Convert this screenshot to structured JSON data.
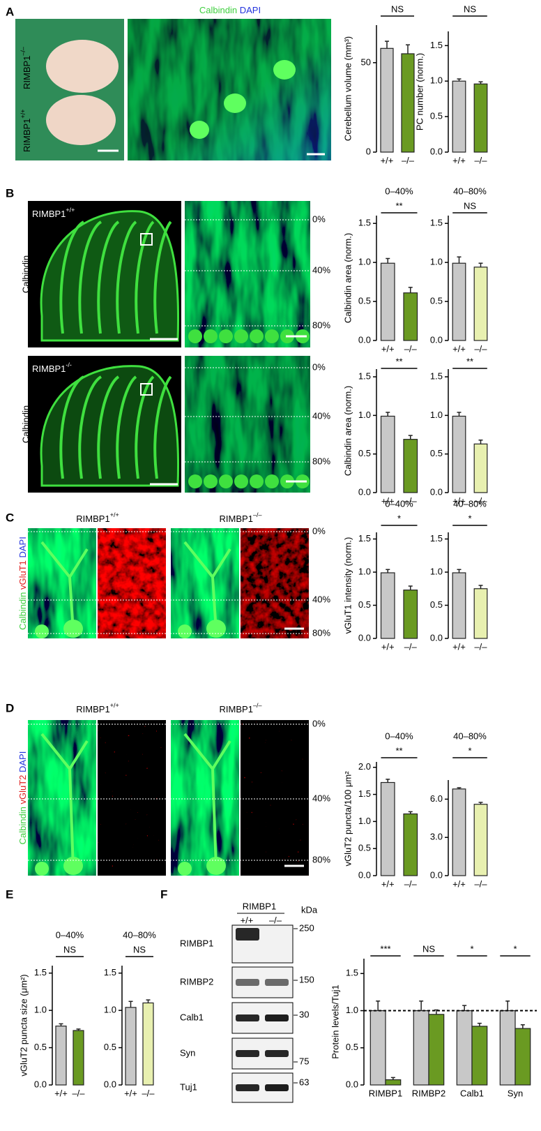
{
  "figure": {
    "panels": [
      "A",
      "B",
      "C",
      "D",
      "E",
      "F"
    ],
    "a_title": [
      "Calbindin",
      "DAPI"
    ],
    "a_labels": [
      {
        "base": "RIMBP1",
        "sup": "–/–"
      },
      {
        "base": "RIMBP1",
        "sup": "+/+"
      }
    ],
    "b_labels": [
      {
        "base": "RIMBP1",
        "sup": "+/+"
      },
      {
        "base": "RIMBP1",
        "sup": "-/-"
      }
    ],
    "b_stain": "Calbindin",
    "depth_labels": [
      "0%",
      "40%",
      "80%"
    ],
    "cd_headers": [
      {
        "base": "RIMBP1",
        "sup": "+/+"
      },
      {
        "base": "RIMBP1",
        "sup": "–/–"
      }
    ],
    "c_stain": [
      "Calbindin",
      "vGluT1",
      "DAPI"
    ],
    "d_stain": [
      "Calbindin",
      "vGluT2",
      "DAPI"
    ],
    "blot": {
      "header": "RIMBP1",
      "genotypes": [
        "+/+",
        "–/–"
      ],
      "unit": "kDa",
      "rows": [
        {
          "label": "RIMBP1",
          "kda": "250"
        },
        {
          "label": "RIMBP2",
          "kda": "150"
        },
        {
          "label": "Calb1",
          "kda": "30"
        },
        {
          "label": "Syn",
          "kda": "75"
        },
        {
          "label": "Tuj1",
          "kda": "63"
        }
      ]
    }
  },
  "chart_data": [
    {
      "type": "bar",
      "ylabel": "Cerebellum volume (mm³)",
      "categories": [
        "+/+",
        "–/–"
      ],
      "values": [
        58,
        55
      ],
      "errors": [
        4,
        5
      ],
      "colors": [
        "#c8c8c8",
        "#6a9a22"
      ],
      "significance": "NS",
      "ylim": [
        0,
        71
      ],
      "yticks": [
        0,
        50
      ]
    },
    {
      "type": "bar",
      "ylabel": "PC number (norm.)",
      "categories": [
        "+/+",
        "–/–"
      ],
      "values": [
        1.0,
        0.96
      ],
      "errors": [
        0.03,
        0.03
      ],
      "colors": [
        "#c8c8c8",
        "#6a9a22"
      ],
      "significance": "NS",
      "ylim": [
        0,
        1.7
      ],
      "yticks": [
        {
          "value": 0,
          "label": "0.0"
        },
        {
          "value": 0.5,
          "label": "0.5"
        },
        {
          "value": 1,
          "label": "1.0"
        },
        {
          "value": 1.5,
          "label": "1.5"
        }
      ]
    },
    {
      "type": "bar",
      "title": "0–40%",
      "ylabel": "Calbindin area (norm.)",
      "categories": [
        "+/+",
        "–/–"
      ],
      "values": [
        0.99,
        0.61
      ],
      "errors": [
        0.06,
        0.07
      ],
      "colors": [
        "#c8c8c8",
        "#6a9a22"
      ],
      "significance": "**",
      "ylim": [
        0,
        1.6
      ],
      "yticks": [
        {
          "value": 0,
          "label": "0.0"
        },
        {
          "value": 0.5,
          "label": "0.5"
        },
        {
          "value": 1,
          "label": "1.0"
        },
        {
          "value": 1.5,
          "label": "1.5"
        }
      ]
    },
    {
      "type": "bar",
      "title": "40–80%",
      "categories": [
        "+/+",
        "–/–"
      ],
      "values": [
        0.99,
        0.94
      ],
      "errors": [
        0.08,
        0.05
      ],
      "colors": [
        "#c8c8c8",
        "#e8f0b0"
      ],
      "significance": "NS",
      "ylim": [
        0,
        1.6
      ],
      "yticks": [
        {
          "value": 0,
          "label": "0.0"
        },
        {
          "value": 0.5,
          "label": "0.5"
        },
        {
          "value": 1,
          "label": "1.0"
        },
        {
          "value": 1.5,
          "label": "1.5"
        }
      ]
    },
    {
      "type": "bar",
      "ylabel": "Calbindin area (norm.)",
      "categories": [
        "+/+",
        "–/–"
      ],
      "values": [
        0.99,
        0.69
      ],
      "errors": [
        0.05,
        0.05
      ],
      "colors": [
        "#c8c8c8",
        "#6a9a22"
      ],
      "significance": "**",
      "ylim": [
        0,
        1.6
      ],
      "yticks": [
        {
          "value": 0,
          "label": "0.0"
        },
        {
          "value": 0.5,
          "label": "0.5"
        },
        {
          "value": 1,
          "label": "1.0"
        },
        {
          "value": 1.5,
          "label": "1.5"
        }
      ]
    },
    {
      "type": "bar",
      "categories": [
        "+/+",
        "–/–"
      ],
      "values": [
        0.99,
        0.63
      ],
      "errors": [
        0.05,
        0.05
      ],
      "colors": [
        "#c8c8c8",
        "#e8f0b0"
      ],
      "significance": "**",
      "ylim": [
        0,
        1.6
      ],
      "yticks": [
        {
          "value": 0,
          "label": "0.0"
        },
        {
          "value": 0.5,
          "label": "0.5"
        },
        {
          "value": 1,
          "label": "1.0"
        },
        {
          "value": 1.5,
          "label": "1.5"
        }
      ]
    },
    {
      "type": "bar",
      "title": "0–40%",
      "ylabel": "vGluT1 intensity (norm.)",
      "categories": [
        "+/+",
        "–/–"
      ],
      "values": [
        0.99,
        0.73
      ],
      "errors": [
        0.05,
        0.06
      ],
      "colors": [
        "#c8c8c8",
        "#6a9a22"
      ],
      "significance": "*",
      "ylim": [
        0,
        1.6
      ],
      "yticks": [
        {
          "value": 0,
          "label": "0.0"
        },
        {
          "value": 0.5,
          "label": "0.5"
        },
        {
          "value": 1,
          "label": "1.0"
        },
        {
          "value": 1.5,
          "label": "1.5"
        }
      ]
    },
    {
      "type": "bar",
      "title": "40–80%",
      "categories": [
        "+/+",
        "–/–"
      ],
      "values": [
        0.99,
        0.75
      ],
      "errors": [
        0.05,
        0.05
      ],
      "colors": [
        "#c8c8c8",
        "#e8f0b0"
      ],
      "significance": "*",
      "ylim": [
        0,
        1.6
      ],
      "yticks": [
        {
          "value": 0,
          "label": "0.0"
        },
        {
          "value": 0.5,
          "label": "0.5"
        },
        {
          "value": 1,
          "label": "1.0"
        },
        {
          "value": 1.5,
          "label": "1.5"
        }
      ]
    },
    {
      "type": "bar",
      "title": "0–40%",
      "ylabel": "vGluT2 puncta/100 μm²",
      "categories": [
        "+/+",
        "–/–"
      ],
      "values": [
        1.72,
        1.14
      ],
      "errors": [
        0.06,
        0.04
      ],
      "colors": [
        "#c8c8c8",
        "#6a9a22"
      ],
      "significance": "**",
      "ylim": [
        0,
        2.1
      ],
      "yticks": [
        {
          "value": 0,
          "label": "0.0"
        },
        {
          "value": 0.5,
          "label": "0.5"
        },
        {
          "value": 1,
          "label": "1.0"
        },
        {
          "value": 1.5,
          "label": "1.5"
        },
        {
          "value": 2,
          "label": "2.0"
        }
      ]
    },
    {
      "type": "bar",
      "title": "40–80%",
      "categories": [
        "+/+",
        "–/–"
      ],
      "values": [
        6.8,
        5.6
      ],
      "errors": [
        0.1,
        0.15
      ],
      "colors": [
        "#c8c8c8",
        "#e8f0b0"
      ],
      "significance": "*",
      "ylim": [
        0,
        7.5
      ],
      "yticks": [
        {
          "value": 0,
          "label": "0.0"
        },
        {
          "value": 3,
          "label": "3.0"
        },
        {
          "value": 6,
          "label": "6.0"
        }
      ]
    },
    {
      "type": "bar",
      "title": "0–40%",
      "ylabel": "vGluT2 puncta size (μm²)",
      "categories": [
        "+/+",
        "–/–"
      ],
      "values": [
        0.79,
        0.73
      ],
      "errors": [
        0.03,
        0.02
      ],
      "colors": [
        "#c8c8c8",
        "#6a9a22"
      ],
      "significance": "NS",
      "ylim": [
        0,
        1.6
      ],
      "yticks": [
        {
          "value": 0,
          "label": "0.0"
        },
        {
          "value": 0.5,
          "label": "0.5"
        },
        {
          "value": 1,
          "label": "1.0"
        },
        {
          "value": 1.5,
          "label": "1.5"
        }
      ]
    },
    {
      "type": "bar",
      "title": "40–80%",
      "categories": [
        "+/+",
        "–/–"
      ],
      "values": [
        1.04,
        1.1
      ],
      "errors": [
        0.08,
        0.04
      ],
      "colors": [
        "#c8c8c8",
        "#e8f0b0"
      ],
      "significance": "NS",
      "ylim": [
        0,
        1.6
      ],
      "yticks": [
        {
          "value": 0,
          "label": "0.0"
        },
        {
          "value": 0.5,
          "label": "0.5"
        },
        {
          "value": 1,
          "label": "1.0"
        },
        {
          "value": 1.5,
          "label": "1.5"
        }
      ]
    },
    {
      "type": "bar",
      "ylabel": "Protein levels/Tuj1",
      "categories": [
        "RIMBP1",
        "RIMBP2",
        "Calb1",
        "Syn"
      ],
      "series": [
        {
          "color": "#c8c8c8",
          "values": [
            1,
            1,
            1,
            1
          ],
          "errors": [
            0.13,
            0.13,
            0.07,
            0.13
          ]
        },
        {
          "color": "#6a9a22",
          "values": [
            0.07,
            0.95,
            0.79,
            0.76
          ],
          "errors": [
            0.03,
            0.06,
            0.04,
            0.05
          ]
        }
      ],
      "significance": [
        "***",
        "NS",
        "*",
        "*"
      ],
      "reference_line": 1,
      "ylim": [
        0,
        1.7
      ],
      "yticks": [
        {
          "value": 0,
          "label": "0.0"
        },
        {
          "value": 0.5,
          "label": "0.5"
        },
        {
          "value": 1,
          "label": "1.0"
        },
        {
          "value": 1.5,
          "label": "1.5"
        }
      ]
    }
  ]
}
